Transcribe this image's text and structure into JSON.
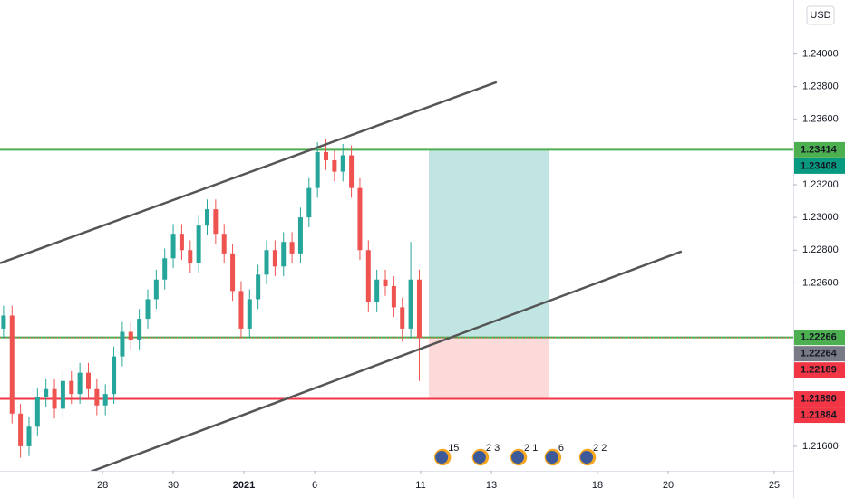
{
  "chart_data": {
    "type": "candlestick",
    "currency": "USD",
    "xlim": [
      -2.9,
      19.54
    ],
    "ylim": [
      1.2145,
      1.2433
    ],
    "xticks": [
      {
        "value": 0,
        "label": "28"
      },
      {
        "value": 2,
        "label": "30"
      },
      {
        "value": 4,
        "label": "2021"
      },
      {
        "value": 6,
        "label": "6"
      },
      {
        "value": 9,
        "label": "11"
      },
      {
        "value": 11,
        "label": "13"
      },
      {
        "value": 14,
        "label": "18"
      },
      {
        "value": 16,
        "label": "20"
      },
      {
        "value": 19,
        "label": "25"
      }
    ],
    "yticks": [
      {
        "value": 1.216,
        "label": "1.21600"
      },
      {
        "value": 1.226,
        "label": "1.22600"
      },
      {
        "value": 1.228,
        "label": "1.22800"
      },
      {
        "value": 1.23,
        "label": "1.23000"
      },
      {
        "value": 1.232,
        "label": "1.23200"
      },
      {
        "value": 1.236,
        "label": "1.23600"
      },
      {
        "value": 1.238,
        "label": "1.23800"
      },
      {
        "value": 1.24,
        "label": "1.24000"
      }
    ],
    "up_color": "#26a69a",
    "down_color": "#ef5350",
    "x": [
      -2.8,
      -2.56,
      -2.32,
      -2.08,
      -1.84,
      -1.6,
      -1.36,
      -1.12,
      -0.88,
      -0.64,
      -0.4,
      -0.16,
      0.08,
      0.32,
      0.56,
      0.8,
      1.04,
      1.28,
      1.52,
      1.76,
      2.0,
      2.24,
      2.48,
      2.72,
      2.96,
      3.2,
      3.44,
      3.68,
      3.92,
      4.16,
      4.4,
      4.64,
      4.88,
      5.12,
      5.36,
      5.6,
      5.84,
      6.08,
      6.32,
      6.56,
      6.8,
      7.04,
      7.28,
      7.52,
      7.76,
      8.0,
      8.24,
      8.48,
      8.72,
      8.96
    ],
    "open": [
      1.2232,
      1.224,
      1.218,
      1.216,
      1.2172,
      1.219,
      1.2195,
      1.2183,
      1.22,
      1.2192,
      1.2205,
      1.2195,
      1.2185,
      1.2192,
      1.2215,
      1.223,
      1.2225,
      1.2238,
      1.225,
      1.2262,
      1.2275,
      1.229,
      1.228,
      1.2272,
      1.2295,
      1.2305,
      1.229,
      1.2278,
      1.2255,
      1.2232,
      1.225,
      1.2265,
      1.228,
      1.227,
      1.2285,
      1.2278,
      1.23,
      1.2318,
      1.234,
      1.2335,
      1.2328,
      1.2338,
      1.2318,
      1.228,
      1.2248,
      1.2262,
      1.2258,
      1.2245,
      1.2232,
      1.2262
    ],
    "high": [
      1.2246,
      1.2246,
      1.2186,
      1.2178,
      1.2196,
      1.2201,
      1.2201,
      1.2206,
      1.2206,
      1.2211,
      1.2211,
      1.2201,
      1.2198,
      1.2221,
      1.2236,
      1.2236,
      1.2244,
      1.2256,
      1.2268,
      1.2281,
      1.2296,
      1.2296,
      1.2286,
      1.2301,
      1.2311,
      1.2311,
      1.2296,
      1.2284,
      1.2261,
      1.2256,
      1.2271,
      1.2286,
      1.2286,
      1.2291,
      1.2291,
      1.2306,
      1.2324,
      1.2346,
      1.2348,
      1.2341,
      1.2345,
      1.2344,
      1.2324,
      1.2286,
      1.2268,
      1.2268,
      1.2264,
      1.2251,
      1.2285,
      1.2268
    ],
    "low": [
      1.2226,
      1.2174,
      1.2153,
      1.2154,
      1.2166,
      1.2184,
      1.2177,
      1.2177,
      1.2186,
      1.2186,
      1.2189,
      1.2179,
      1.2179,
      1.2186,
      1.2209,
      1.2219,
      1.2219,
      1.2232,
      1.2244,
      1.2256,
      1.2269,
      1.2274,
      1.2266,
      1.2266,
      1.2289,
      1.2284,
      1.2272,
      1.2249,
      1.2226,
      1.2226,
      1.2244,
      1.2259,
      1.2264,
      1.2264,
      1.2272,
      1.2272,
      1.2294,
      1.2312,
      1.2329,
      1.2322,
      1.2322,
      1.2312,
      1.2274,
      1.2242,
      1.2242,
      1.2252,
      1.2239,
      1.2224,
      1.2226,
      1.22
    ],
    "close": [
      1.224,
      1.218,
      1.216,
      1.2172,
      1.219,
      1.2195,
      1.2183,
      1.22,
      1.2192,
      1.2205,
      1.2195,
      1.2185,
      1.2192,
      1.2215,
      1.223,
      1.2225,
      1.2238,
      1.225,
      1.2262,
      1.2275,
      1.229,
      1.228,
      1.2272,
      1.2295,
      1.2305,
      1.229,
      1.2278,
      1.2255,
      1.2232,
      1.225,
      1.2265,
      1.228,
      1.227,
      1.2285,
      1.2278,
      1.23,
      1.2318,
      1.234,
      1.2335,
      1.2328,
      1.2338,
      1.2318,
      1.228,
      1.2248,
      1.2262,
      1.2258,
      1.2245,
      1.2232,
      1.2262,
      1.22264
    ],
    "trend_lines": [
      {
        "x": [
          -2.9,
          11.15
        ],
        "y": [
          1.2272,
          1.23828
        ],
        "color": "#555555"
      },
      {
        "x": [
          -0.33,
          16.38
        ],
        "y": [
          1.21445,
          1.22792
        ],
        "color": "#555555"
      }
    ],
    "levels": [
      {
        "value": 1.23414,
        "color": "#4caf50",
        "style": "solid"
      },
      {
        "value": 1.22266,
        "color": "#4caf50",
        "style": "solid"
      },
      {
        "value": 1.2189,
        "color": "#f23645",
        "style": "solid"
      },
      {
        "value": 1.22264,
        "color": "#f23645",
        "style": "dotted"
      }
    ],
    "position": {
      "x": [
        9.23,
        12.62
      ],
      "entry": 1.22266,
      "target": 1.23414,
      "stop": 1.2189,
      "profit_color": "#b2dfdb",
      "loss_color": "#fcd1d1"
    },
    "price_labels": [
      {
        "value": 1.23414,
        "label": "1.23414",
        "color": "#4caf50"
      },
      {
        "value": 1.23408,
        "label": "1.23408",
        "color": "#089981"
      },
      {
        "value": 1.22266,
        "label": "1.22266",
        "color": "#4caf50"
      },
      {
        "value": 1.22264,
        "label": "1.22264",
        "color": "#787b86"
      },
      {
        "value": 1.22189,
        "label": "1.22189",
        "color": "#f23645"
      },
      {
        "value": 1.2189,
        "label": "1.21890",
        "color": "#f23645"
      },
      {
        "value": 1.21884,
        "label": "1.21884",
        "color": "#f23645"
      }
    ],
    "events": [
      {
        "x": 9.62,
        "label": "15"
      },
      {
        "x": 10.69,
        "label": "2 3"
      },
      {
        "x": 11.77,
        "label": "2 1"
      },
      {
        "x": 12.74,
        "label": "6"
      },
      {
        "x": 13.72,
        "label": "2 2"
      }
    ]
  }
}
